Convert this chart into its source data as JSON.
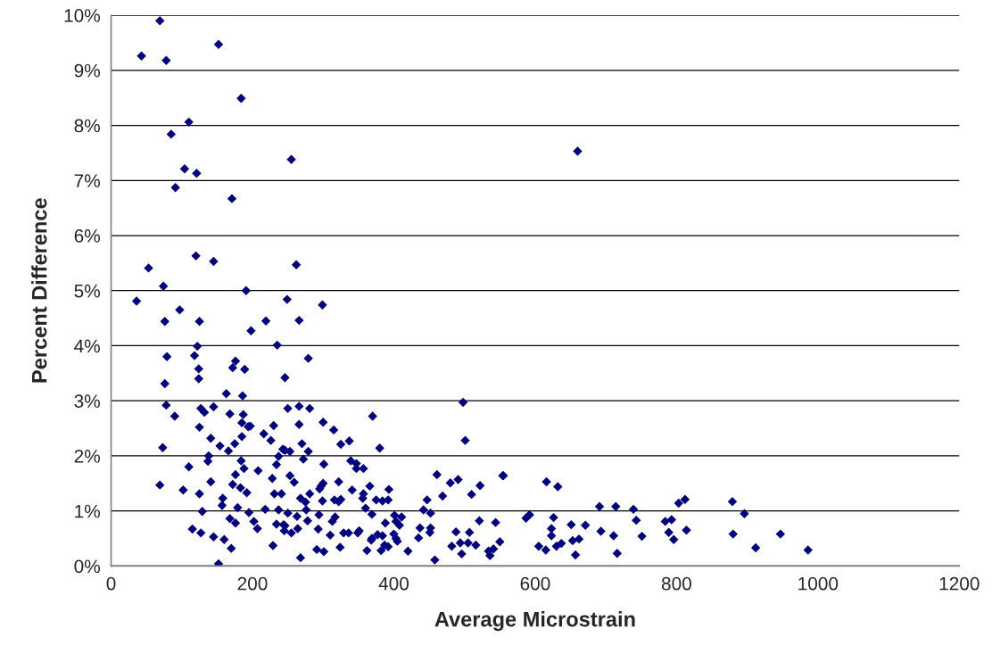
{
  "chart_data": {
    "type": "scatter",
    "xlabel": "Average Microstrain",
    "ylabel": "Percent Difference",
    "xlim": [
      0,
      1200
    ],
    "ylim": [
      0,
      10
    ],
    "xticks": [
      0,
      200,
      400,
      600,
      800,
      1000,
      1200
    ],
    "yticks": [
      {
        "value": 0,
        "label": "0%"
      },
      {
        "value": 1,
        "label": "1%"
      },
      {
        "value": 2,
        "label": "2%"
      },
      {
        "value": 3,
        "label": "3%"
      },
      {
        "value": 4,
        "label": "4%"
      },
      {
        "value": 5,
        "label": "5%"
      },
      {
        "value": 6,
        "label": "6%"
      },
      {
        "value": 7,
        "label": "7%"
      },
      {
        "value": 8,
        "label": "8%"
      },
      {
        "value": 9,
        "label": "9%"
      },
      {
        "value": 10,
        "label": "10%"
      }
    ],
    "grid": "y",
    "marker": "diamond",
    "series": [
      {
        "color": "#000080",
        "x": [
          69,
          43,
          78,
          152,
          184,
          110,
          85,
          104,
          121,
          91,
          171,
          255,
          120,
          145,
          53,
          262,
          74,
          191,
          36,
          249,
          660,
          299,
          266,
          279,
          246,
          250,
          266,
          281,
          370,
          498,
          266,
          300,
          315,
          325,
          337,
          380,
          501,
          270,
          253,
          246,
          279,
          272,
          301,
          339,
          347,
          357,
          347,
          253,
          259,
          322,
          300,
          297,
          295,
          366,
          341,
          357,
          356,
          393,
          281,
          268,
          275,
          375,
          384,
          392,
          316,
          325,
          322,
          299,
          461,
          480,
          491,
          522,
          510,
          469,
          554,
          447,
          276,
          250,
          263,
          294,
          278,
          317,
          313,
          360,
          369,
          401,
          411,
          403,
          408,
          388,
          442,
          452,
          437,
          452,
          451,
          435,
          246,
          255,
          264,
          293,
          310,
          329,
          336,
          349,
          351,
          369,
          368,
          377,
          384,
          400,
          403,
          405,
          387,
          392,
          324,
          291,
          301,
          362,
          382,
          420,
          268,
          458,
          488,
          507,
          521,
          544,
          550,
          482,
          494,
          505,
          516,
          496,
          534,
          541,
          536,
          97,
          76,
          125,
          219,
          198,
          122,
          235,
          79,
          118,
          176,
          172,
          189,
          124,
          124,
          76,
          163,
          186,
          78,
          90,
          127,
          132,
          145,
          168,
          187,
          185,
          194,
          197,
          125,
          230,
          216,
          226,
          141,
          185,
          175,
          154,
          166,
          73,
          243,
          237,
          138,
          137,
          184,
          188,
          110,
          208,
          234,
          176,
          228,
          69,
          141,
          172,
          183,
          192,
          102,
          125,
          231,
          241,
          158,
          157,
          179,
          129,
          195,
          218,
          237,
          168,
          176,
          202,
          207,
          234,
          244,
          245,
          115,
          127,
          145,
          160,
          170,
          229,
          152,
          555,
          616,
          632,
          587,
          592,
          626,
          651,
          671,
          623,
          623,
          605,
          615,
          630,
          637,
          653,
          662,
          657,
          691,
          714,
          739,
          743,
          693,
          711,
          716,
          751,
          784,
          793,
          789,
          796,
          803,
          812,
          814,
          879,
          896,
          880,
          912,
          947,
          986
        ],
        "values": [
          9.9,
          9.26,
          9.18,
          9.47,
          8.49,
          8.06,
          7.84,
          7.21,
          7.13,
          6.87,
          6.67,
          7.38,
          5.63,
          5.53,
          5.41,
          5.47,
          5.08,
          5.0,
          4.81,
          4.84,
          7.53,
          4.74,
          4.46,
          3.77,
          3.42,
          2.86,
          2.9,
          2.86,
          2.72,
          2.97,
          2.57,
          2.61,
          2.47,
          2.21,
          2.27,
          2.14,
          2.28,
          2.22,
          2.08,
          2.1,
          2.08,
          1.94,
          1.85,
          1.91,
          1.86,
          1.77,
          1.77,
          1.64,
          1.52,
          1.53,
          1.5,
          1.45,
          1.4,
          1.45,
          1.38,
          1.31,
          1.23,
          1.39,
          1.31,
          1.23,
          1.16,
          1.2,
          1.18,
          1.2,
          1.2,
          1.21,
          1.17,
          1.18,
          1.66,
          1.51,
          1.57,
          1.46,
          1.3,
          1.27,
          1.64,
          1.2,
          1.02,
          0.96,
          0.9,
          0.93,
          0.82,
          0.89,
          0.81,
          1.05,
          0.94,
          0.92,
          0.89,
          0.81,
          0.74,
          0.78,
          1.02,
          0.96,
          0.69,
          0.69,
          0.61,
          0.51,
          0.73,
          0.6,
          0.68,
          0.67,
          0.56,
          0.6,
          0.6,
          0.6,
          0.64,
          0.5,
          0.47,
          0.57,
          0.55,
          0.58,
          0.5,
          0.45,
          0.38,
          0.35,
          0.34,
          0.3,
          0.26,
          0.28,
          0.28,
          0.27,
          0.15,
          0.11,
          0.62,
          0.61,
          0.82,
          0.79,
          0.44,
          0.36,
          0.42,
          0.42,
          0.38,
          0.22,
          0.27,
          0.31,
          0.19,
          4.65,
          4.44,
          4.44,
          4.45,
          4.27,
          3.99,
          4.01,
          3.8,
          3.82,
          3.72,
          3.6,
          3.57,
          3.58,
          3.4,
          3.31,
          3.13,
          3.09,
          2.92,
          2.72,
          2.86,
          2.79,
          2.89,
          2.76,
          2.75,
          2.6,
          2.53,
          2.54,
          2.52,
          2.55,
          2.4,
          2.28,
          2.32,
          2.35,
          2.22,
          2.18,
          2.09,
          2.15,
          2.12,
          1.99,
          2.0,
          1.9,
          1.91,
          1.77,
          1.8,
          1.73,
          1.84,
          1.66,
          1.59,
          1.47,
          1.53,
          1.48,
          1.42,
          1.33,
          1.38,
          1.31,
          1.31,
          1.31,
          1.23,
          1.1,
          1.06,
          0.99,
          0.97,
          1.03,
          1.02,
          0.86,
          0.78,
          0.81,
          0.68,
          0.76,
          0.75,
          0.64,
          0.67,
          0.6,
          0.53,
          0.48,
          0.32,
          0.37,
          0.04,
          1.64,
          1.53,
          1.44,
          0.87,
          0.93,
          0.88,
          0.75,
          0.74,
          0.68,
          0.55,
          0.36,
          0.29,
          0.36,
          0.41,
          0.46,
          0.49,
          0.2,
          1.08,
          1.08,
          1.03,
          0.83,
          0.63,
          0.55,
          0.23,
          0.54,
          0.81,
          0.84,
          0.61,
          0.48,
          1.14,
          1.21,
          0.65,
          1.17,
          0.95,
          0.58,
          0.33,
          0.58,
          0.29
        ]
      }
    ]
  }
}
